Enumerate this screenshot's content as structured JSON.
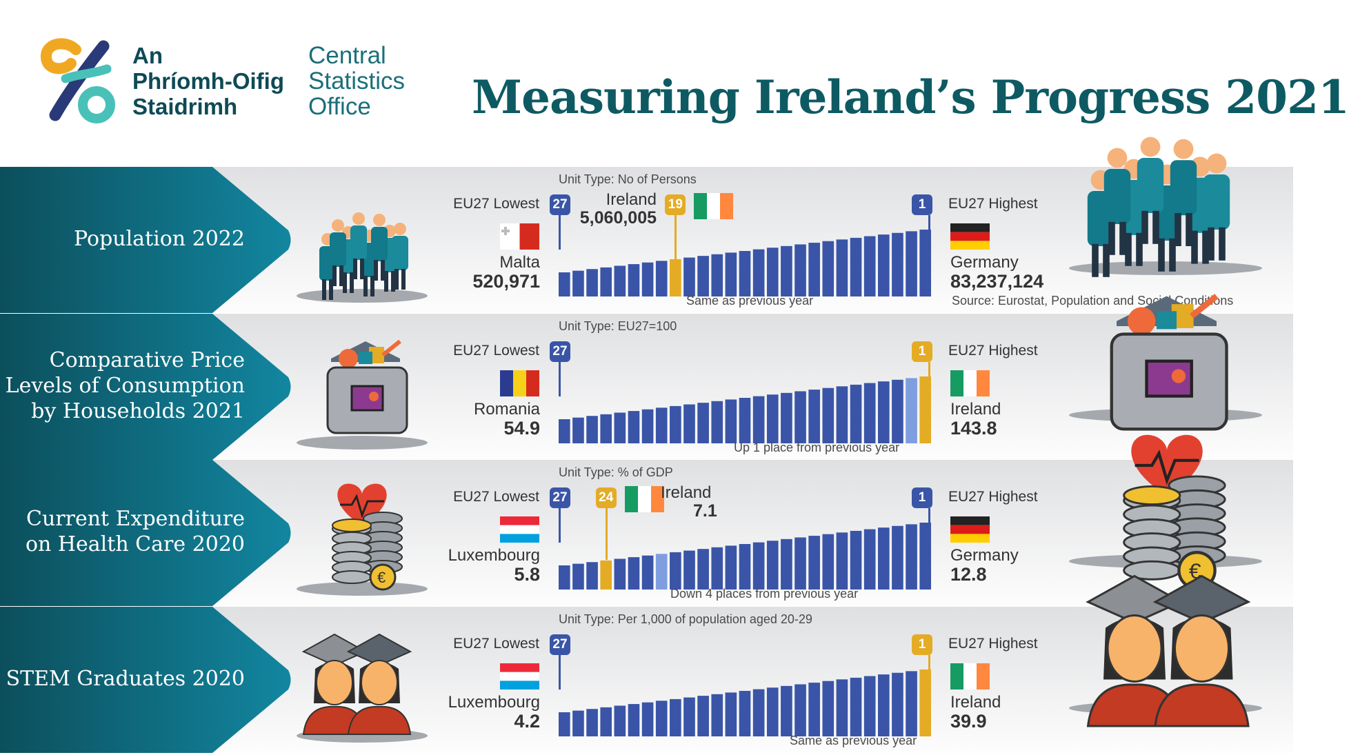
{
  "header": {
    "org_irish": [
      "An",
      "Phríomh-Oifig",
      "Staidrimh"
    ],
    "org_english": [
      "Central",
      "Statistics",
      "Office"
    ],
    "title": "Measuring Ireland’s Progress 2021"
  },
  "colors": {
    "teal_dark": "#0e5a63",
    "arrow": "#0b6b7b",
    "bar_blue": "#3a55a7",
    "bar_light": "#7e9ee0",
    "ireland_gold": "#e4ab25"
  },
  "common": {
    "lowest_label": "EU27 Lowest",
    "highest_label": "EU27 Highest",
    "rank_low": "27",
    "rank_high": "1"
  },
  "rows": [
    {
      "title_lines": [
        "Population 2022"
      ],
      "unit": "Unit Type: No of Persons",
      "lowest": {
        "country": "Malta",
        "value": "520,971",
        "flag": "malta"
      },
      "highest": {
        "country": "Germany",
        "value": "83,237,124",
        "flag": "germany"
      },
      "ireland": {
        "name": "Ireland",
        "value": "5,060,005",
        "rank": "19"
      },
      "note": "Same as previous year",
      "source": "Source: Eurostat, Population and Social Conditions",
      "icon": "people-group-icon",
      "chart_data": {
        "type": "bar",
        "ranks": 27,
        "ireland_rank": 19,
        "previous_rank": 19
      }
    },
    {
      "title_lines": [
        "Comparative Price",
        "Levels of Consumption",
        "by Households 2021"
      ],
      "unit": "Unit Type: EU27=100",
      "lowest": {
        "country": "Romania",
        "value": "54.9",
        "flag": "romania"
      },
      "highest": {
        "country": "Ireland",
        "value": "143.8",
        "flag": "ireland"
      },
      "ireland": {
        "name": "Ireland",
        "value": "143.8",
        "rank": "1"
      },
      "note": "Up 1 place from previous year",
      "icon": "shopping-bag-icon",
      "chart_data": {
        "type": "bar",
        "ranks": 27,
        "ireland_rank": 1,
        "previous_rank": 2
      }
    },
    {
      "title_lines": [
        "Current Expenditure",
        "on Health Care 2020"
      ],
      "unit": "Unit Type: % of GDP",
      "lowest": {
        "country": "Luxembourg",
        "value": "5.8",
        "flag": "luxembourg"
      },
      "highest": {
        "country": "Germany",
        "value": "12.8",
        "flag": "germany"
      },
      "ireland": {
        "name": "Ireland",
        "value": "7.1",
        "rank": "24"
      },
      "note": "Down 4 places from previous year",
      "icon": "heart-coins-icon",
      "chart_data": {
        "type": "bar",
        "ranks": 27,
        "ireland_rank": 24,
        "previous_rank": 20
      }
    },
    {
      "title_lines": [
        "STEM Graduates 2020"
      ],
      "unit": "Unit Type: Per 1,000 of population aged 20-29",
      "lowest": {
        "country": "Luxembourg",
        "value": "4.2",
        "flag": "luxembourg"
      },
      "highest": {
        "country": "Ireland",
        "value": "39.9",
        "flag": "ireland"
      },
      "ireland": {
        "name": "Ireland",
        "value": "39.9",
        "rank": "1"
      },
      "note": "Same as previous year",
      "icon": "graduates-icon",
      "chart_data": {
        "type": "bar",
        "ranks": 27,
        "ireland_rank": 1,
        "previous_rank": 1
      }
    }
  ]
}
